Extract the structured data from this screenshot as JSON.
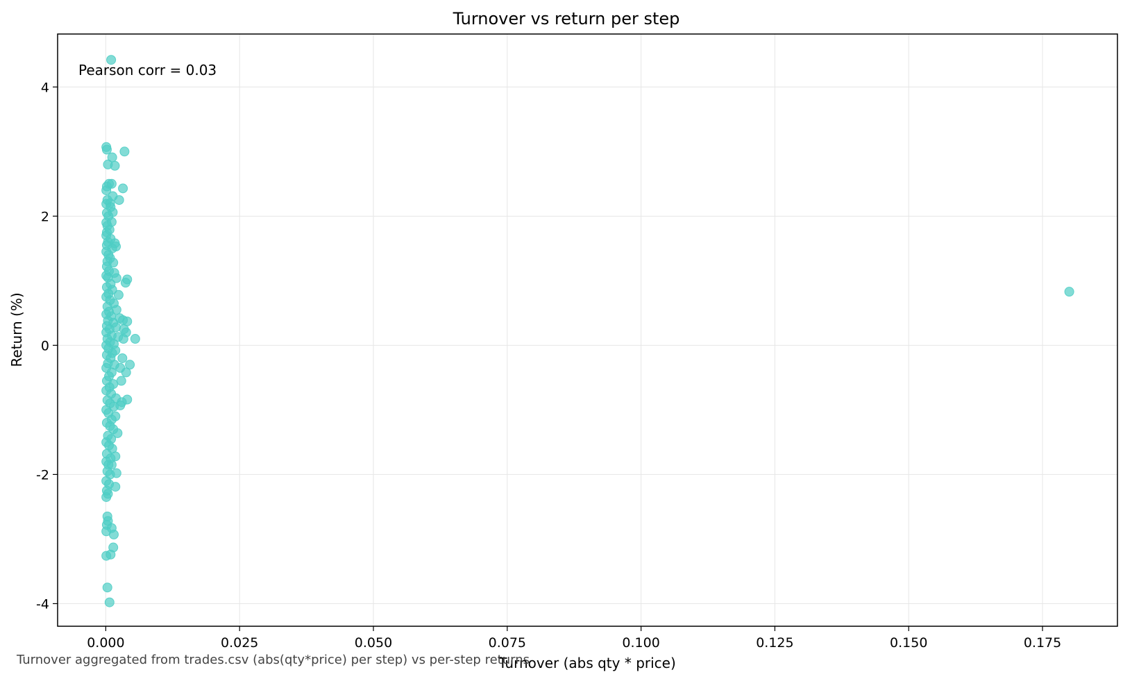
{
  "chart_data": {
    "type": "scatter",
    "title": "Turnover vs return per step",
    "xlabel": "Turnover (abs qty * price)",
    "ylabel": "Return (%)",
    "xlim": [
      -0.009,
      0.189
    ],
    "ylim": [
      -4.35,
      4.82
    ],
    "xticks": [
      0.0,
      0.025,
      0.05,
      0.075,
      0.1,
      0.125,
      0.15,
      0.175
    ],
    "xtick_labels": [
      "0.000",
      "0.025",
      "0.050",
      "0.075",
      "0.100",
      "0.125",
      "0.150",
      "0.175"
    ],
    "yticks": [
      -4,
      -2,
      0,
      2,
      4
    ],
    "ytick_labels": [
      "-4",
      "-2",
      "0",
      "2",
      "4"
    ],
    "grid": true,
    "annotation": "Pearson corr = 0.03",
    "point_color": "#4ecdc4",
    "points": [
      [
        0.001,
        4.42
      ],
      [
        0.0001,
        3.07
      ],
      [
        0.0002,
        3.03
      ],
      [
        0.0035,
        3.0
      ],
      [
        0.0012,
        2.91
      ],
      [
        0.0004,
        2.8
      ],
      [
        0.0017,
        2.78
      ],
      [
        0.0006,
        2.5
      ],
      [
        0.0011,
        2.5
      ],
      [
        0.0002,
        2.46
      ],
      [
        0.0032,
        2.43
      ],
      [
        0.0001,
        2.4
      ],
      [
        0.0013,
        2.31
      ],
      [
        0.0025,
        2.25
      ],
      [
        0.0003,
        2.25
      ],
      [
        0.0008,
        2.2
      ],
      [
        0.0001,
        2.19
      ],
      [
        0.0009,
        2.14
      ],
      [
        0.0013,
        2.06
      ],
      [
        0.0002,
        2.05
      ],
      [
        0.0005,
        2.0
      ],
      [
        0.0011,
        1.91
      ],
      [
        0.0001,
        1.9
      ],
      [
        0.0003,
        1.85
      ],
      [
        0.0007,
        1.79
      ],
      [
        0.0002,
        1.75
      ],
      [
        0.0001,
        1.7
      ],
      [
        0.0009,
        1.65
      ],
      [
        0.0004,
        1.6
      ],
      [
        0.0017,
        1.58
      ],
      [
        0.0019,
        1.53
      ],
      [
        0.0002,
        1.55
      ],
      [
        0.0012,
        1.5
      ],
      [
        0.0001,
        1.45
      ],
      [
        0.0005,
        1.4
      ],
      [
        0.0008,
        1.35
      ],
      [
        0.0003,
        1.3
      ],
      [
        0.0014,
        1.28
      ],
      [
        0.0002,
        1.22
      ],
      [
        0.0006,
        1.15
      ],
      [
        0.0016,
        1.12
      ],
      [
        0.0001,
        1.08
      ],
      [
        0.0004,
        1.05
      ],
      [
        0.002,
        1.04
      ],
      [
        0.004,
        1.02
      ],
      [
        0.0037,
        0.97
      ],
      [
        0.0009,
        0.95
      ],
      [
        0.0002,
        0.9
      ],
      [
        0.0012,
        0.86
      ],
      [
        0.0024,
        0.78
      ],
      [
        0.0005,
        0.8
      ],
      [
        0.0001,
        0.75
      ],
      [
        0.0008,
        0.7
      ],
      [
        0.0015,
        0.65
      ],
      [
        0.0003,
        0.6
      ],
      [
        0.002,
        0.55
      ],
      [
        0.0006,
        0.52
      ],
      [
        0.0001,
        0.48
      ],
      [
        0.001,
        0.45
      ],
      [
        0.0026,
        0.42
      ],
      [
        0.0032,
        0.39
      ],
      [
        0.004,
        0.37
      ],
      [
        0.0004,
        0.38
      ],
      [
        0.0014,
        0.35
      ],
      [
        0.0002,
        0.3
      ],
      [
        0.0019,
        0.28
      ],
      [
        0.0034,
        0.25
      ],
      [
        0.0007,
        0.25
      ],
      [
        0.0001,
        0.2
      ],
      [
        0.0038,
        0.2
      ],
      [
        0.0011,
        0.15
      ],
      [
        0.0023,
        0.13
      ],
      [
        0.0055,
        0.1
      ],
      [
        0.0033,
        0.1
      ],
      [
        0.0003,
        0.1
      ],
      [
        0.0008,
        0.05
      ],
      [
        0.0015,
        0.02
      ],
      [
        0.0001,
        0.0
      ],
      [
        0.0005,
        -0.05
      ],
      [
        0.0018,
        -0.08
      ],
      [
        0.0012,
        -0.12
      ],
      [
        0.0002,
        -0.15
      ],
      [
        0.0031,
        -0.2
      ],
      [
        0.0009,
        -0.2
      ],
      [
        0.0045,
        -0.3
      ],
      [
        0.0004,
        -0.28
      ],
      [
        0.0016,
        -0.3
      ],
      [
        0.0027,
        -0.35
      ],
      [
        0.0001,
        -0.35
      ],
      [
        0.0038,
        -0.42
      ],
      [
        0.0011,
        -0.42
      ],
      [
        0.0006,
        -0.48
      ],
      [
        0.0029,
        -0.55
      ],
      [
        0.0002,
        -0.55
      ],
      [
        0.0014,
        -0.6
      ],
      [
        0.0007,
        -0.65
      ],
      [
        0.0001,
        -0.7
      ],
      [
        0.001,
        -0.75
      ],
      [
        0.0019,
        -0.82
      ],
      [
        0.004,
        -0.84
      ],
      [
        0.0003,
        -0.85
      ],
      [
        0.0027,
        -0.93
      ],
      [
        0.0008,
        -0.9
      ],
      [
        0.003,
        -0.88
      ],
      [
        0.0015,
        -0.95
      ],
      [
        0.0001,
        -1.0
      ],
      [
        0.0005,
        -1.05
      ],
      [
        0.0018,
        -1.1
      ],
      [
        0.0011,
        -1.15
      ],
      [
        0.0002,
        -1.2
      ],
      [
        0.0008,
        -1.25
      ],
      [
        0.0014,
        -1.3
      ],
      [
        0.0022,
        -1.36
      ],
      [
        0.0004,
        -1.4
      ],
      [
        0.001,
        -1.45
      ],
      [
        0.0001,
        -1.5
      ],
      [
        0.0006,
        -1.55
      ],
      [
        0.0012,
        -1.6
      ],
      [
        0.0018,
        -1.72
      ],
      [
        0.0002,
        -1.68
      ],
      [
        0.0009,
        -1.75
      ],
      [
        0.0001,
        -1.8
      ],
      [
        0.0005,
        -1.85
      ],
      [
        0.0011,
        -1.85
      ],
      [
        0.0003,
        -1.95
      ],
      [
        0.002,
        -1.98
      ],
      [
        0.0008,
        -2.0
      ],
      [
        0.0001,
        -2.1
      ],
      [
        0.0006,
        -2.15
      ],
      [
        0.0018,
        -2.19
      ],
      [
        0.0002,
        -2.25
      ],
      [
        0.0004,
        -2.3
      ],
      [
        0.0001,
        -2.35
      ],
      [
        0.0003,
        -2.65
      ],
      [
        0.0004,
        -2.72
      ],
      [
        0.0002,
        -2.78
      ],
      [
        0.0011,
        -2.83
      ],
      [
        0.0001,
        -2.88
      ],
      [
        0.0015,
        -2.93
      ],
      [
        0.0014,
        -3.13
      ],
      [
        0.0001,
        -3.26
      ],
      [
        0.0009,
        -3.24
      ],
      [
        0.0003,
        -3.75
      ],
      [
        0.0007,
        -3.98
      ],
      [
        0.18,
        0.83
      ]
    ]
  },
  "footnote": "Turnover aggregated from trades.csv (abs(qty*price) per step) vs per-step returns"
}
